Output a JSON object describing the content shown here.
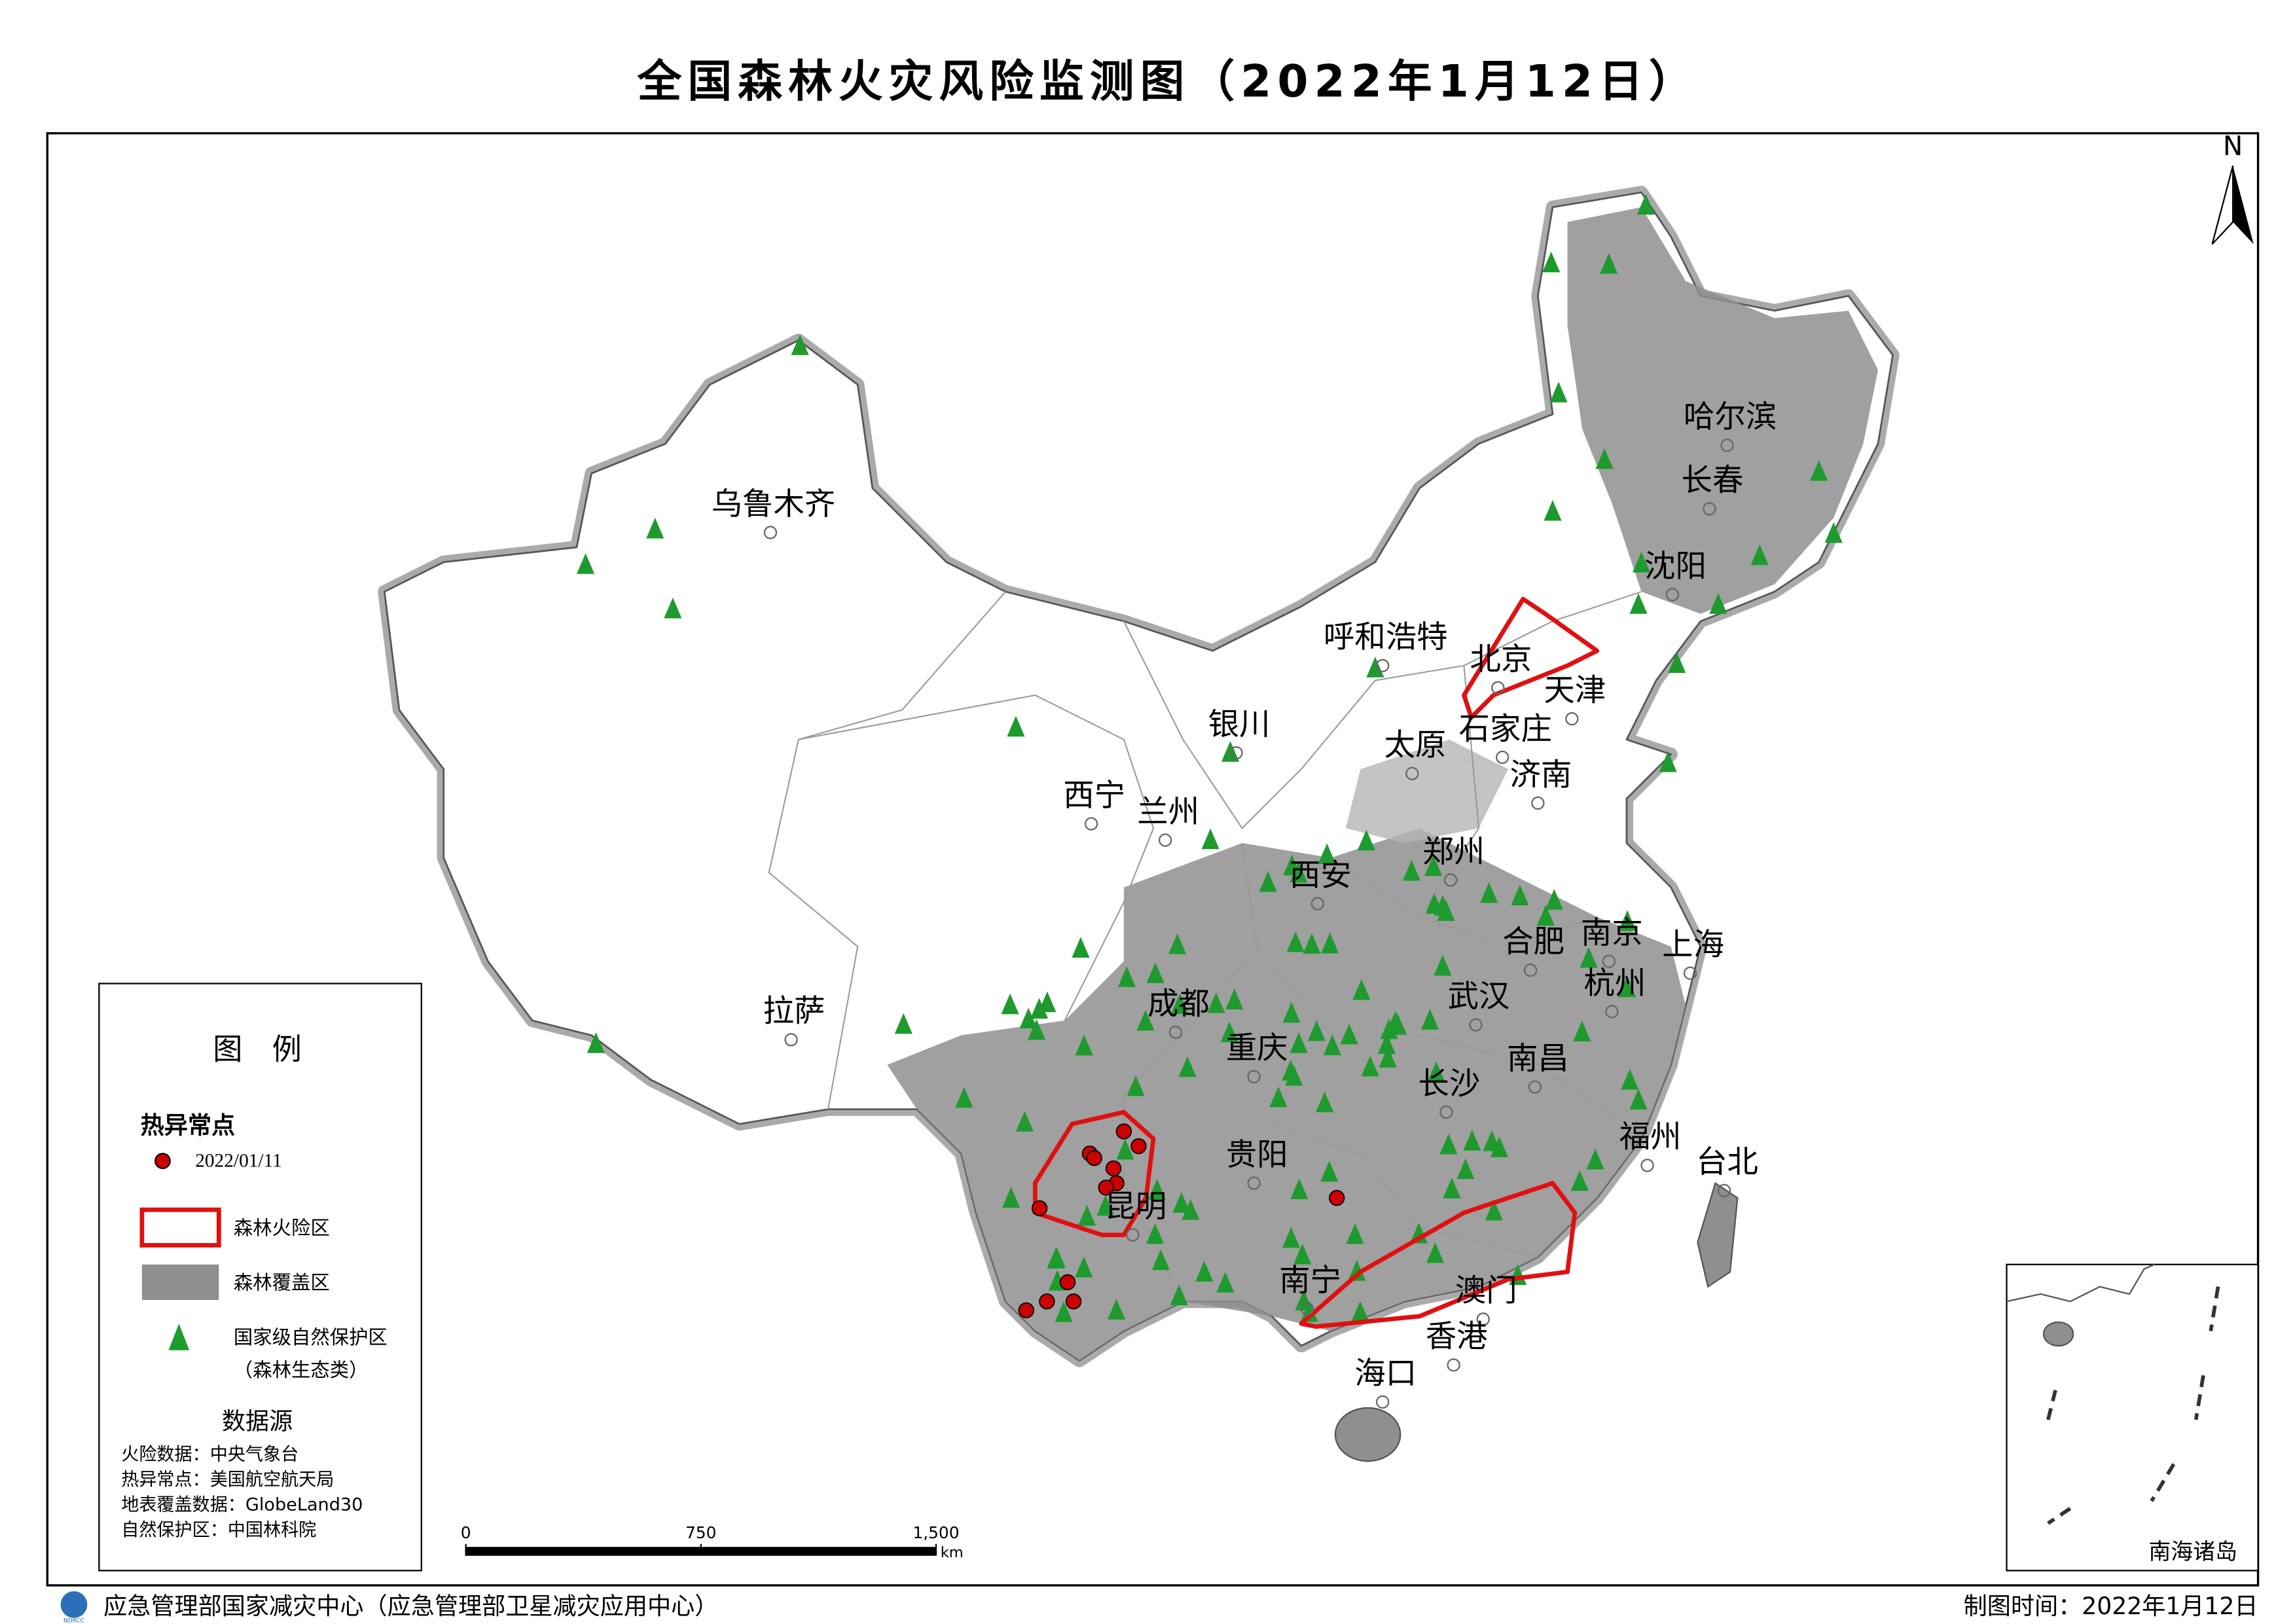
{
  "title": "全国森林火灾风险监测图（2022年1月12日）",
  "north": "N",
  "cities": [
    "乌鲁木齐",
    "哈尔滨",
    "长春",
    "沈阳",
    "呼和浩特",
    "北京",
    "天津",
    "银川",
    "太原",
    "石家庄",
    "济南",
    "西宁",
    "兰州",
    "郑州",
    "西安",
    "合肥",
    "南京",
    "上海",
    "杭州",
    "拉萨",
    "成都",
    "武汉",
    "重庆",
    "南昌",
    "长沙",
    "福州",
    "台北",
    "贵阳",
    "昆明",
    "南宁",
    "澳门",
    "香港",
    "海口"
  ],
  "legend": {
    "title": "图　例",
    "hotspot_heading": "热异常点",
    "hotspot_date": "2022/01/11",
    "fire_risk": "森林火险区",
    "forest_cover": "森林覆盖区",
    "reserve": [
      "国家级自然保护区",
      "（森林生态类）"
    ]
  },
  "data_source": {
    "heading": "数据源",
    "lines": [
      "火险数据：中央气象台",
      "热异常点：美国航空航天局",
      "地表覆盖数据：GlobeLand30",
      "自然保护区：中国林科院"
    ]
  },
  "scale_bar": {
    "ticks": [
      0,
      750,
      {
        "value": 1500,
        "label": "1,500"
      }
    ],
    "unit": "km"
  },
  "inset_label": "南海诸岛",
  "footer": {
    "logo": "NDRCC",
    "org": "应急管理部国家减灾中心（应急管理部卫星减灾应用中心）",
    "date": "制图时间：2022年1月12日"
  }
}
